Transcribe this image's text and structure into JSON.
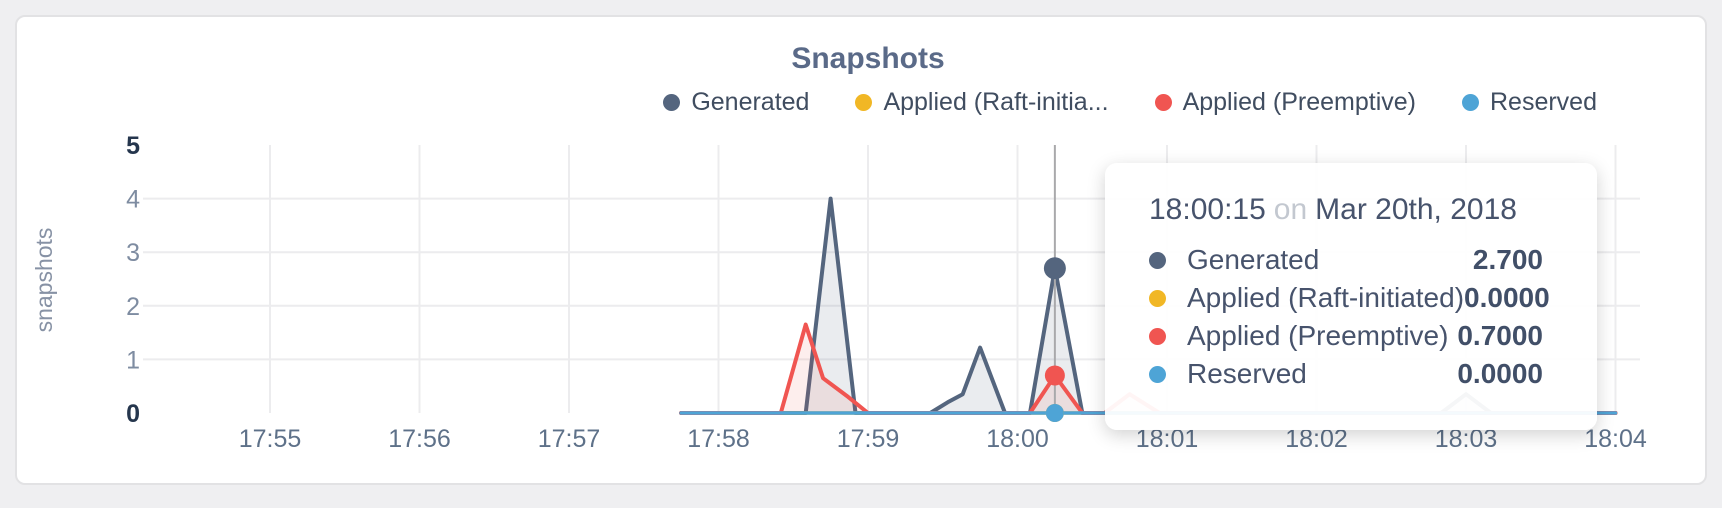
{
  "title": "Snapshots",
  "legend": {
    "items": [
      {
        "label": "Generated",
        "color": "#54657e"
      },
      {
        "label": "Applied (Raft-initia...",
        "color": "#f1b725"
      },
      {
        "label": "Applied (Preemptive)",
        "color": "#f05551"
      },
      {
        "label": "Reserved",
        "color": "#4ea4d6"
      }
    ]
  },
  "tooltip": {
    "time": "18:00:15",
    "connector": "on",
    "date": "Mar 20th, 2018",
    "rows": [
      {
        "label": "Generated",
        "color": "#54657e",
        "value": "2.700"
      },
      {
        "label": "Applied (Raft-initiated)",
        "color": "#f1b725",
        "value": "0.0000"
      },
      {
        "label": "Applied (Preemptive)",
        "color": "#f05551",
        "value": "0.7000"
      },
      {
        "label": "Reserved",
        "color": "#4ea4d6",
        "value": "0.0000"
      }
    ]
  },
  "chart_data": {
    "type": "area",
    "title": "Snapshots",
    "ylabel": "snapshots",
    "ylim": [
      0,
      5
    ],
    "x_unit": "seconds offset from 17:55:00",
    "x_ticks": [
      {
        "sec": 0,
        "label": "17:55"
      },
      {
        "sec": 60,
        "label": "17:56"
      },
      {
        "sec": 120,
        "label": "17:57"
      },
      {
        "sec": 180,
        "label": "17:58"
      },
      {
        "sec": 240,
        "label": "17:59"
      },
      {
        "sec": 300,
        "label": "18:00"
      },
      {
        "sec": 360,
        "label": "18:01"
      },
      {
        "sec": 420,
        "label": "18:02"
      },
      {
        "sec": 480,
        "label": "18:03"
      },
      {
        "sec": 540,
        "label": "18:04"
      }
    ],
    "y_ticks": [
      {
        "value": 0,
        "label": "0",
        "emphasis": true,
        "grid": false
      },
      {
        "value": 1,
        "label": "1",
        "emphasis": false,
        "grid": true
      },
      {
        "value": 2,
        "label": "2",
        "emphasis": false,
        "grid": true
      },
      {
        "value": 3,
        "label": "3",
        "emphasis": false,
        "grid": true
      },
      {
        "value": 4,
        "label": "4",
        "emphasis": false,
        "grid": true
      },
      {
        "value": 5,
        "label": "5",
        "emphasis": true,
        "grid": false
      }
    ],
    "hover": {
      "sec": 315,
      "time": "18:00:15",
      "date": "Mar 20th, 2018"
    },
    "series": [
      {
        "name": "Generated",
        "color": "#54657e",
        "fill": "rgba(84,101,126,0.12)",
        "hover_value": 2.7,
        "points": [
          [
            165,
            0
          ],
          [
            205,
            0
          ],
          [
            215,
            0
          ],
          [
            225,
            4.0
          ],
          [
            235,
            0
          ],
          [
            265,
            0
          ],
          [
            272,
            0.2
          ],
          [
            278,
            0.35
          ],
          [
            285,
            1.22
          ],
          [
            295,
            0
          ],
          [
            305,
            0
          ],
          [
            315,
            2.7
          ],
          [
            326,
            0
          ],
          [
            470,
            0
          ],
          [
            480,
            0.35
          ],
          [
            490,
            0
          ],
          [
            540,
            0
          ]
        ]
      },
      {
        "name": "Applied (Raft-initiated)",
        "color": "#f1b725",
        "fill": "none",
        "hover_value": 0.0,
        "points": [
          [
            165,
            0
          ],
          [
            540,
            0
          ]
        ]
      },
      {
        "name": "Applied (Preemptive)",
        "color": "#f05551",
        "fill": "rgba(240,85,81,0.10)",
        "hover_value": 0.7,
        "points": [
          [
            165,
            0
          ],
          [
            205,
            0
          ],
          [
            215,
            1.65
          ],
          [
            222,
            0.65
          ],
          [
            232,
            0.3
          ],
          [
            240,
            0
          ],
          [
            305,
            0
          ],
          [
            315,
            0.7
          ],
          [
            326,
            0
          ],
          [
            335,
            0
          ],
          [
            345,
            0.35
          ],
          [
            357,
            0
          ],
          [
            540,
            0
          ]
        ]
      },
      {
        "name": "Reserved",
        "color": "#4ea4d6",
        "fill": "none",
        "hover_value": 0.0,
        "points": [
          [
            165,
            0
          ],
          [
            540,
            0
          ]
        ]
      }
    ],
    "legend_position": "top-right",
    "grid": true
  },
  "colors": {
    "page_bg": "#efeff1",
    "card_bg": "#ffffff",
    "card_border": "#e2e2e4",
    "gridline": "#ececee",
    "crosshair": "#a9a9ab",
    "title_text": "#5a6a88",
    "axis_text": "#5e7189",
    "axis_text_emphasis": "#25364d",
    "tooltip_text": "#47536c"
  }
}
